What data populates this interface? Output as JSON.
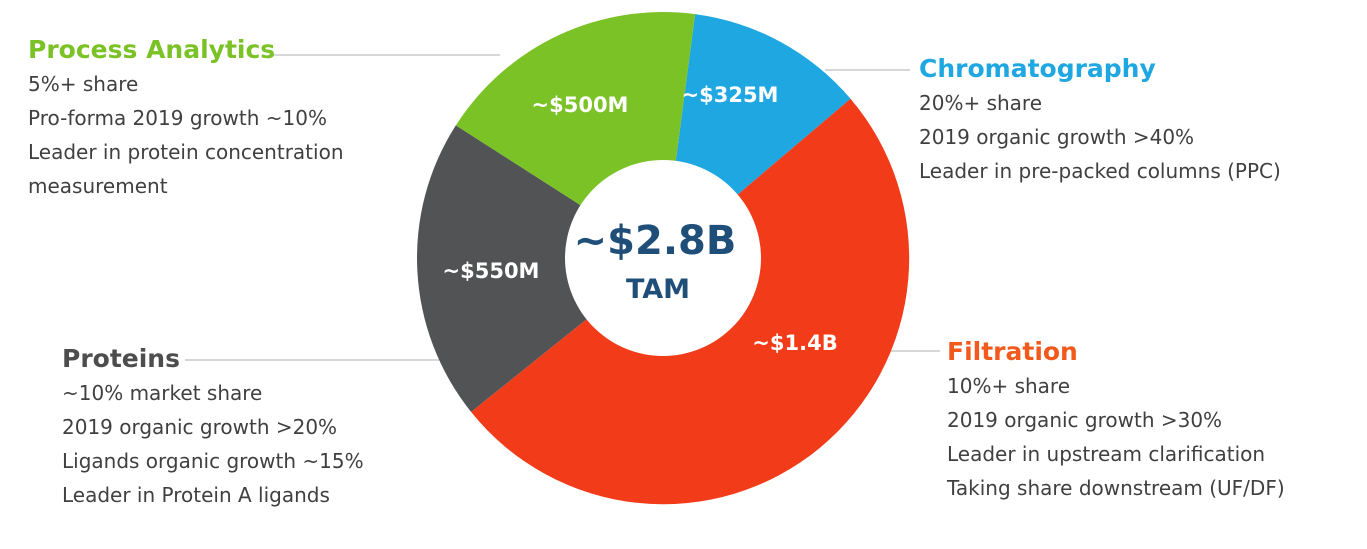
{
  "chart_data": {
    "type": "pie",
    "style": "donut",
    "center_total": "~$2.8B",
    "center_label": "TAM",
    "segments": [
      {
        "name": "Chromatography",
        "value_label": "~$325M",
        "value": 325,
        "color": "#1ea7e1",
        "details": [
          "20%+ share",
          "2019 organic growth >40%",
          "Leader in pre-packed columns (PPC)"
        ]
      },
      {
        "name": "Filtration",
        "value_label": "~$1.4B",
        "value": 1400,
        "color": "#f23c19",
        "details": [
          "10%+ share",
          "2019 organic growth >30%",
          "Leader in upstream clarification",
          "Taking share downstream (UF/DF)"
        ]
      },
      {
        "name": "Proteins",
        "value_label": "~$550M",
        "value": 550,
        "color": "#525354",
        "details": [
          "~10% market share",
          "2019 organic growth >20%",
          "Ligands organic growth ~15%",
          "Leader in Protein A ligands"
        ]
      },
      {
        "name": "Process Analytics",
        "value_label": "~$500M",
        "value": 500,
        "color": "#7ac225",
        "details": [
          "5%+ share",
          "Pro-forma 2019 growth ~10%",
          "Leader in protein concentration",
          "measurement"
        ]
      }
    ],
    "colors": {
      "center_text": "#1f4e79",
      "title_chromatography": "#1ea7e1",
      "title_filtration": "#f25a1d",
      "title_proteins": "#4d4d4d",
      "title_process_analytics": "#7ac225",
      "leader_line": "#bfbfbf"
    }
  }
}
